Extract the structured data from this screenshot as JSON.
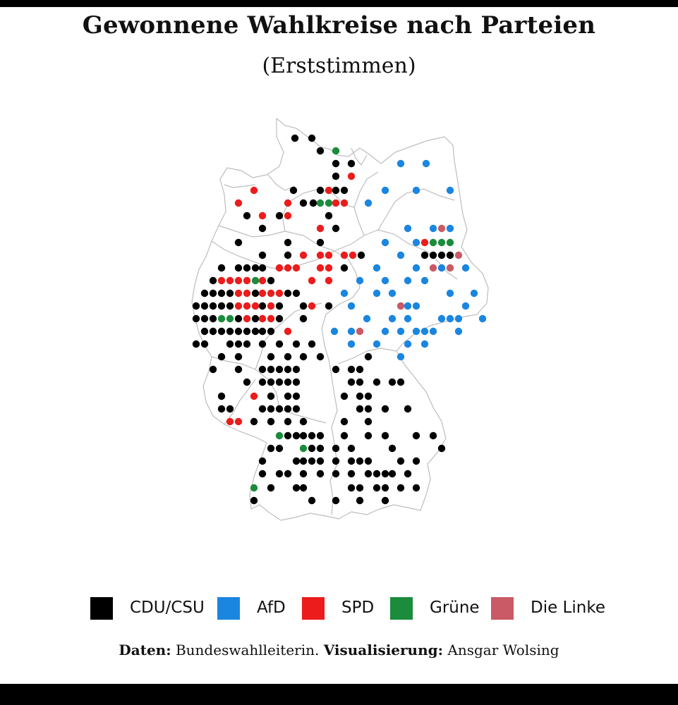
{
  "title": "Gewonnene Wahlkreise nach Parteien",
  "subtitle": "(Erststimmen)",
  "parties": [
    {
      "key": "cdu",
      "label": "CDU/CSU",
      "color": "#000000"
    },
    {
      "key": "afd",
      "label": "AfD",
      "color": "#1a86e0"
    },
    {
      "key": "spd",
      "label": "SPD",
      "color": "#ec1c1c"
    },
    {
      "key": "gruene",
      "label": "Grüne",
      "color": "#1a8c3b"
    },
    {
      "key": "linke",
      "label": "Die Linke",
      "color": "#c95a66"
    }
  ],
  "credit": {
    "data_label": "Daten:",
    "data_value": "Bundeswahlleiterin.",
    "vis_label": "Visualisierung:",
    "vis_value": "Ansgar Wolsing"
  },
  "map_icon": "germany-outline-icon"
}
